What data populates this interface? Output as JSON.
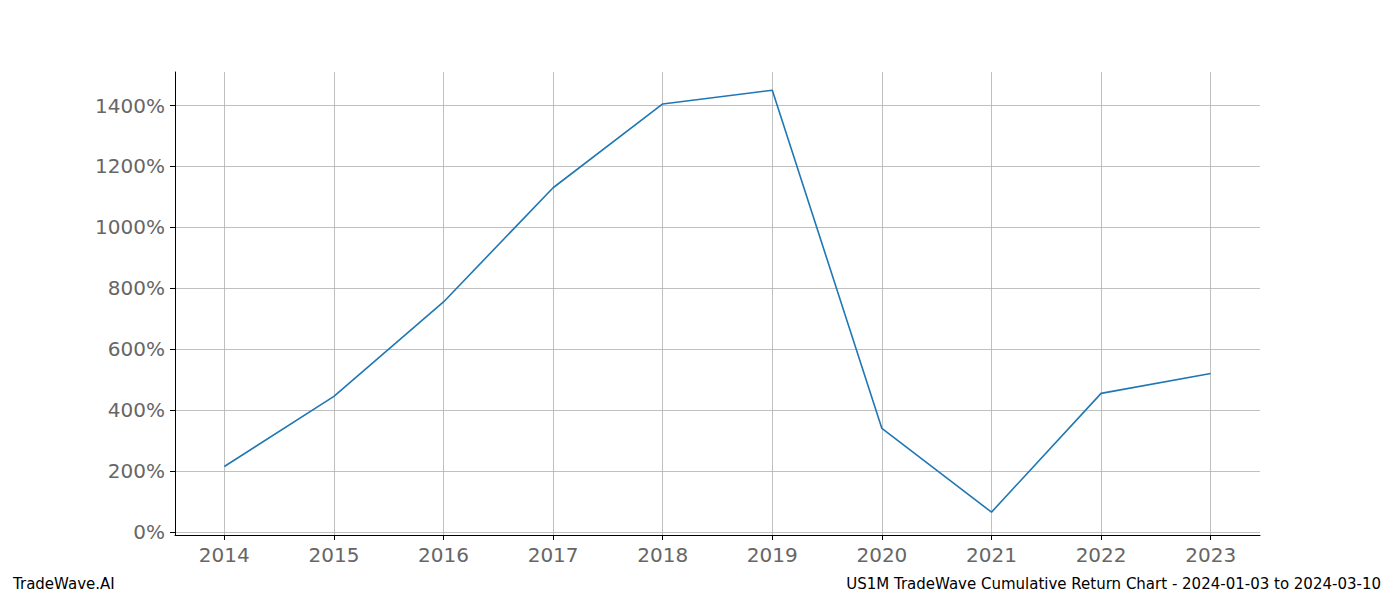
{
  "chart_data": {
    "type": "line",
    "title": "US1M TradeWave Cumulative Return Chart - 2024-01-03 to 2024-03-10",
    "source": "TradeWave.AI",
    "x": [
      2014,
      2015,
      2016,
      2017,
      2018,
      2019,
      2020,
      2021,
      2022,
      2023
    ],
    "values": [
      215,
      445,
      755,
      1130,
      1405,
      1450,
      340,
      65,
      455,
      520
    ],
    "color": "#1f77b4",
    "xlim": [
      2013.55,
      2023.45
    ],
    "xticks": [
      2014,
      2015,
      2016,
      2017,
      2018,
      2019,
      2020,
      2021,
      2022,
      2023
    ],
    "ylim": [
      -10,
      1510
    ],
    "yticks": [
      {
        "value": 0,
        "label": "0%"
      },
      {
        "value": 200,
        "label": "200%"
      },
      {
        "value": 400,
        "label": "400%"
      },
      {
        "value": 600,
        "label": "600%"
      },
      {
        "value": 800,
        "label": "800%"
      },
      {
        "value": 1000,
        "label": "1000%"
      },
      {
        "value": 1200,
        "label": "1200%"
      },
      {
        "value": 1400,
        "label": "1400%"
      }
    ],
    "grid": true
  }
}
